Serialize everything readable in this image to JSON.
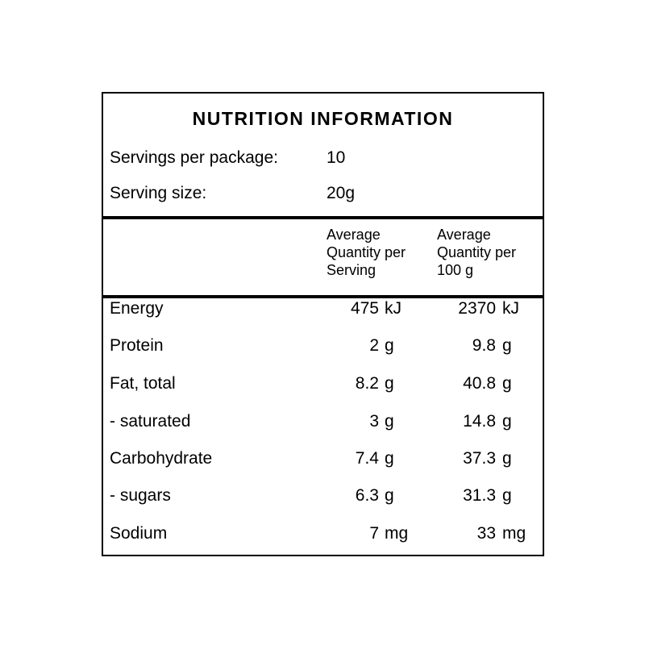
{
  "colors": {
    "background": "#ffffff",
    "border": "#000000",
    "text": "#000000"
  },
  "title": "NUTRITION INFORMATION",
  "serving_info": {
    "rows": [
      {
        "label": "Servings per package:",
        "value": "10"
      },
      {
        "label": "Serving size:",
        "value": "20g"
      }
    ]
  },
  "table": {
    "column_headers": {
      "per_serving": {
        "lines": [
          "Average",
          "Quantity per",
          "Serving"
        ]
      },
      "per_100g": {
        "lines": [
          "Average",
          "Quantity per",
          "100 g"
        ]
      }
    },
    "rows": [
      {
        "nutrient": "Energy",
        "per_serving_value": "475",
        "per_serving_unit": "kJ",
        "per_100g_value": "2370",
        "per_100g_unit": "kJ"
      },
      {
        "nutrient": "Protein",
        "per_serving_value": "2",
        "per_serving_unit": "g",
        "per_100g_value": "9.8",
        "per_100g_unit": "g"
      },
      {
        "nutrient": "Fat, total",
        "per_serving_value": "8.2",
        "per_serving_unit": "g",
        "per_100g_value": "40.8",
        "per_100g_unit": "g"
      },
      {
        "nutrient": "- saturated",
        "per_serving_value": "3",
        "per_serving_unit": "g",
        "per_100g_value": "14.8",
        "per_100g_unit": "g"
      },
      {
        "nutrient": "Carbohydrate",
        "per_serving_value": "7.4",
        "per_serving_unit": "g",
        "per_100g_value": "37.3",
        "per_100g_unit": "g"
      },
      {
        "nutrient": "- sugars",
        "per_serving_value": "6.3",
        "per_serving_unit": "g",
        "per_100g_value": "31.3",
        "per_100g_unit": "g"
      },
      {
        "nutrient": "Sodium",
        "per_serving_value": "7",
        "per_serving_unit": "mg",
        "per_100g_value": "33",
        "per_100g_unit": "mg"
      }
    ]
  }
}
